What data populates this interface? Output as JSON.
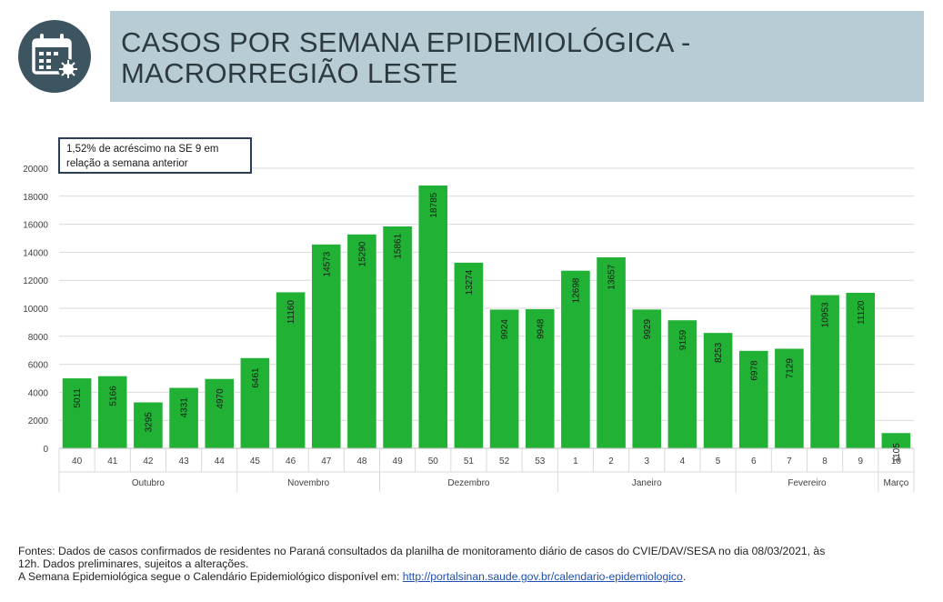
{
  "header": {
    "title_line1": "CASOS POR SEMANA EPIDEMIOLÓGICA -",
    "title_line2": "MACRORREGIÃO LESTE",
    "icon": "calendar-virus-icon"
  },
  "chart_data": {
    "type": "bar",
    "categories": [
      "40",
      "41",
      "42",
      "43",
      "44",
      "45",
      "46",
      "47",
      "48",
      "49",
      "50",
      "51",
      "52",
      "53",
      "1",
      "2",
      "3",
      "4",
      "5",
      "6",
      "7",
      "8",
      "9",
      "10"
    ],
    "values": [
      5011,
      5166,
      3295,
      4331,
      4970,
      6461,
      11160,
      14573,
      15290,
      15861,
      18785,
      13274,
      9924,
      9948,
      12698,
      13657,
      9929,
      9159,
      8253,
      6978,
      7129,
      10953,
      11120,
      1105
    ],
    "months": [
      {
        "label": "Outubro",
        "start": 0,
        "end": 4
      },
      {
        "label": "Novembro",
        "start": 5,
        "end": 8
      },
      {
        "label": "Dezembro",
        "start": 9,
        "end": 13
      },
      {
        "label": "Janeiro",
        "start": 14,
        "end": 18
      },
      {
        "label": "Fevereiro",
        "start": 19,
        "end": 22
      },
      {
        "label": "Março",
        "start": 23,
        "end": 23
      }
    ],
    "ylim": [
      0,
      20000
    ],
    "yticks": [
      0,
      2000,
      4000,
      6000,
      8000,
      10000,
      12000,
      14000,
      16000,
      18000,
      20000
    ],
    "annotation_line1": "1,52% de acréscimo na SE 9 em",
    "annotation_line2": "relação a semana anterior",
    "bar_color": "#21b135",
    "grid": true
  },
  "footer": {
    "line1": "Fontes: Dados de casos confirmados de residentes no Paraná consultados da planilha de monitoramento diário de casos do CVIE/DAV/SESA no dia 08/03/2021, às",
    "line2": "12h. Dados preliminares, sujeitos a alterações.",
    "line3_prefix": "A Semana Epidemiológica segue o Calendário Epidemiológico disponível em: ",
    "link_text": "http://portalsinan.saude.gov.br/calendario-epidemiologico",
    "line3_suffix": "."
  }
}
